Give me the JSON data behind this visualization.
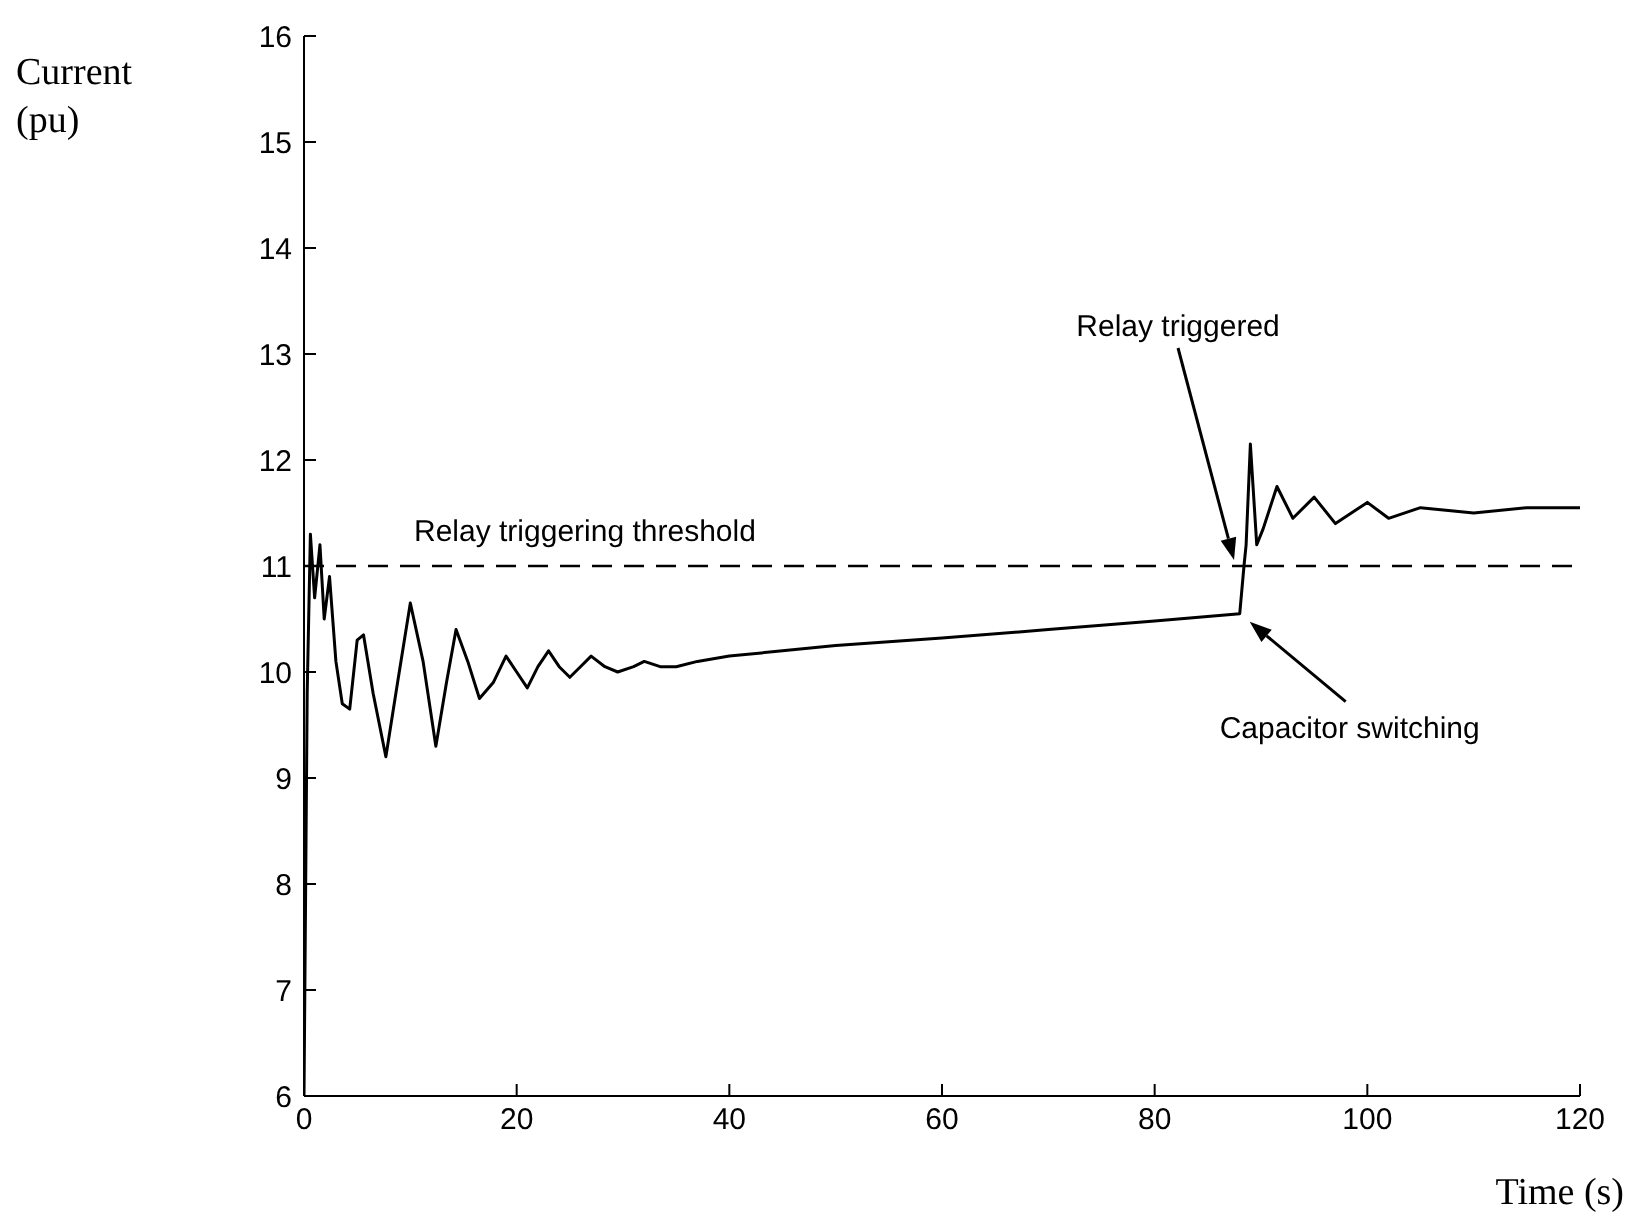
{
  "chart_data": {
    "type": "line",
    "xlabel": "Time (s)",
    "ylabel": "Current (pu)",
    "x": [
      0,
      0.3,
      0.6,
      1,
      1.5,
      1.9,
      2.4,
      3,
      3.6,
      4.3,
      5,
      5.6,
      6.5,
      7.7,
      8.8,
      10,
      11.2,
      12.4,
      13.4,
      14.3,
      15.4,
      16.5,
      17.8,
      19,
      20,
      21,
      22,
      23,
      24,
      25,
      26,
      27,
      28.3,
      29.5,
      31,
      32,
      33.5,
      35,
      37,
      40,
      45,
      50,
      60,
      70,
      80,
      88,
      88.4,
      88.6,
      89,
      89.6,
      90.2,
      91.5,
      93,
      95,
      97,
      100,
      102,
      105,
      110,
      115,
      120
    ],
    "series": [
      {
        "color": "#000000",
        "values": [
          6,
          9.8,
          11.3,
          10.7,
          11.2,
          10.5,
          10.9,
          10.1,
          9.7,
          9.65,
          10.3,
          10.35,
          9.8,
          9.2,
          9.9,
          10.65,
          10.1,
          9.3,
          9.9,
          10.4,
          10.1,
          9.75,
          9.9,
          10.15,
          10,
          9.85,
          10.05,
          10.2,
          10.05,
          9.95,
          10.05,
          10.15,
          10.05,
          10,
          10.05,
          10.1,
          10.05,
          10.05,
          10.1,
          10.15,
          10.2,
          10.25,
          10.32,
          10.4,
          10.48,
          10.55,
          11,
          11.2,
          12.15,
          11.2,
          11.35,
          11.75,
          11.45,
          11.65,
          11.4,
          11.6,
          11.45,
          11.55,
          11.5,
          11.55,
          11.55
        ]
      }
    ],
    "xlim": [
      0,
      120
    ],
    "xticks": [
      0,
      20,
      40,
      60,
      80,
      100,
      120
    ],
    "ylim": [
      6,
      16
    ],
    "yticks": [
      6,
      7,
      8,
      9,
      10,
      11,
      12,
      13,
      14,
      15,
      16
    ],
    "ref_lines": [
      {
        "axis": "y",
        "value": 11,
        "label": "Relay triggering threshold",
        "line_style": "dashed",
        "color": "#000000"
      }
    ],
    "annotations": [
      "Relay triggered",
      "Capacitor switching"
    ],
    "marker": "none",
    "line_style": "solid"
  }
}
